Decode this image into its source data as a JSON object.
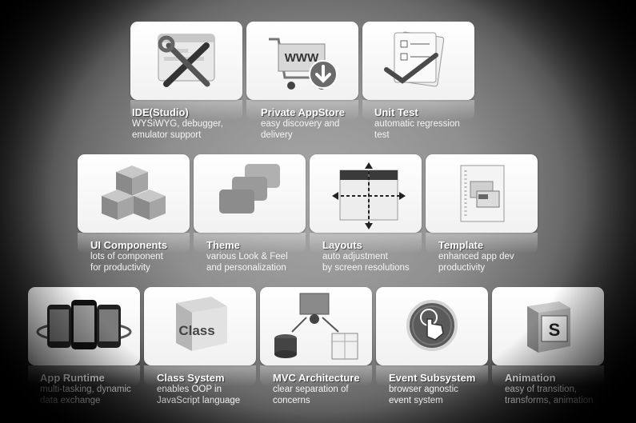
{
  "features": [
    {
      "title": "IDE(Studio)",
      "desc": "WYSiWYG, debugger,\nemulator support",
      "icon": "tools-icon"
    },
    {
      "title": "Private AppStore",
      "desc": "easy discovery and\ndelivery",
      "icon": "shopping-cart-icon",
      "icon_text": "WWW"
    },
    {
      "title": "Unit Test",
      "desc": "automatic regression\ntest",
      "icon": "checklist-icon"
    },
    {
      "title": "UI Components",
      "desc": "lots of component\nfor productivity",
      "icon": "cubes-icon"
    },
    {
      "title": "Theme",
      "desc": "various Look & Feel\nand personalization",
      "icon": "theme-cards-icon"
    },
    {
      "title": "Layouts",
      "desc": "auto adjustment\nby screen resolutions",
      "icon": "layout-arrows-icon"
    },
    {
      "title": "Template",
      "desc": "enhanced app dev\nproductivity",
      "icon": "template-document-icon"
    },
    {
      "title": "App Runtime",
      "desc": "multi-tasking, dynamic\ndata exchange",
      "icon": "phones-icon"
    },
    {
      "title": "Class System",
      "desc": "enables OOP in\nJavaScript language",
      "icon": "class-box-icon",
      "icon_text": "Class"
    },
    {
      "title": "MVC Architecture",
      "desc": "clear separation of\nconcerns",
      "icon": "mvc-icon"
    },
    {
      "title": "Event Subsystem",
      "desc": "browser agnostic\nevent system",
      "icon": "touch-hand-icon"
    },
    {
      "title": "Animation",
      "desc": "easy of transition,\ntransforms, animation",
      "icon": "animation-s-icon",
      "icon_text": "S"
    }
  ]
}
